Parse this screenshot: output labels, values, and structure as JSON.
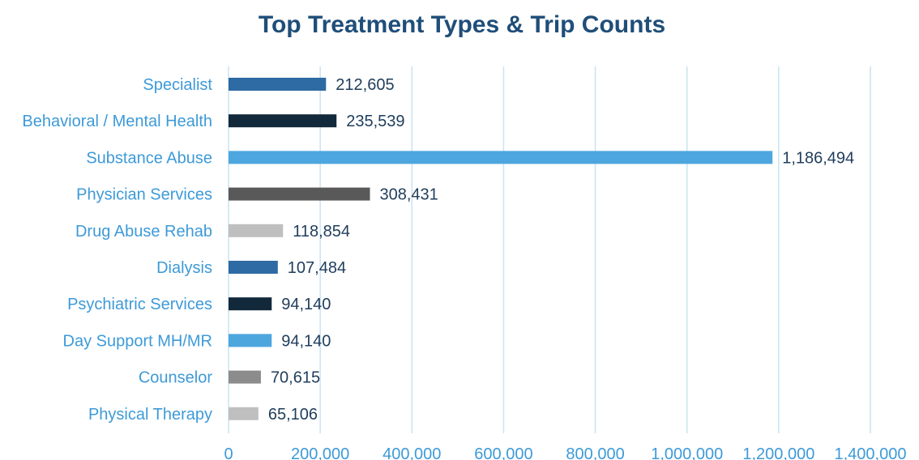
{
  "chart_data": {
    "type": "bar",
    "orientation": "horizontal",
    "title": "Top Treatment Types & Trip Counts",
    "categories": [
      "Specialist",
      "Behavioral / Mental Health",
      "Substance Abuse",
      "Physician Services",
      "Drug Abuse Rehab",
      "Dialysis",
      "Psychiatric Services",
      "Day Support MH/MR",
      "Counselor",
      "Physical Therapy"
    ],
    "values": [
      212605,
      235539,
      1186494,
      308431,
      118854,
      107484,
      94140,
      94140,
      70615,
      65106
    ],
    "value_labels": [
      "212,605",
      "235,539",
      "1,186,494",
      "308,431",
      "118,854",
      "107,484",
      "94,140",
      "94,140",
      "70,615",
      "65,106"
    ],
    "bar_colors": [
      "#2e6aa3",
      "#12293b",
      "#4ea6de",
      "#595959",
      "#bfbfbf",
      "#2e6aa3",
      "#12293b",
      "#4ea6de",
      "#8c8c8c",
      "#bfbfbf"
    ],
    "xlim": [
      0,
      1400000
    ],
    "x_ticks": [
      0,
      200000,
      400000,
      600000,
      800000,
      1000000,
      1200000,
      1400000
    ],
    "x_tick_labels": [
      "0",
      "200,000",
      "400,000",
      "600,000",
      "800,000",
      "1,000,000",
      "1,200,000",
      "1,400,000"
    ],
    "xlabel": "",
    "ylabel": "",
    "grid": "vertical",
    "legend": "none",
    "colors": {
      "title": "#1f4e79",
      "category_label": "#3d9ad8",
      "value_label": "#1f3d5c",
      "tick_label": "#3d9ad8",
      "gridline": "#c9e4f3"
    }
  }
}
